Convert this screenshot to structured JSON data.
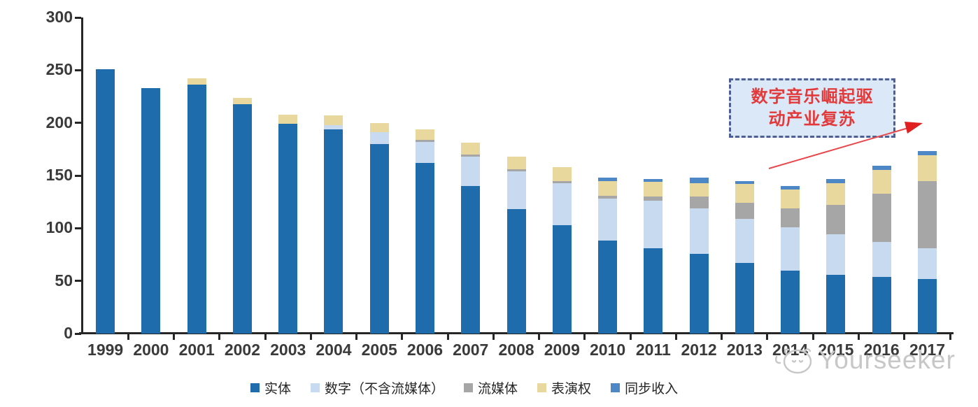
{
  "chart_data": {
    "type": "bar",
    "stacked": true,
    "title": "",
    "xlabel": "",
    "ylabel": "",
    "ylim": [
      0,
      300
    ],
    "yticks": [
      0,
      50,
      100,
      150,
      200,
      250,
      300
    ],
    "grid": false,
    "legend_position": "bottom",
    "categories": [
      "1999",
      "2000",
      "2001",
      "2002",
      "2003",
      "2004",
      "2005",
      "2006",
      "2007",
      "2008",
      "2009",
      "2010",
      "2011",
      "2012",
      "2013",
      "2014",
      "2015",
      "2016",
      "2017"
    ],
    "series": [
      {
        "name": "实体",
        "color": "#1F6CAC",
        "values": [
          251,
          233,
          236,
          218,
          199,
          194,
          180,
          162,
          140,
          118,
          103,
          88,
          81,
          76,
          67,
          60,
          56,
          54,
          52
        ]
      },
      {
        "name": "数字（不含流媒体）",
        "color": "#C7DAEF",
        "values": [
          0,
          0,
          0,
          0,
          0,
          4,
          11,
          20,
          28,
          36,
          40,
          40,
          45,
          43,
          42,
          41,
          38,
          33,
          29
        ]
      },
      {
        "name": "流媒体",
        "color": "#A6A6A6",
        "values": [
          0,
          0,
          0,
          0,
          0,
          0,
          0,
          2,
          2,
          2,
          2,
          3,
          4,
          11,
          15,
          18,
          28,
          46,
          64
        ]
      },
      {
        "name": "表演权",
        "color": "#E8D89E",
        "values": [
          0,
          0,
          6,
          6,
          9,
          9,
          9,
          10,
          11,
          12,
          13,
          14,
          14,
          13,
          18,
          18,
          21,
          22,
          24
        ]
      },
      {
        "name": "同步收入",
        "color": "#4E87C5",
        "values": [
          0,
          0,
          0,
          0,
          0,
          0,
          0,
          0,
          0,
          0,
          0,
          3,
          3,
          5,
          3,
          3,
          4,
          4,
          4
        ]
      }
    ]
  },
  "annotation": {
    "text": "数字音乐崛起驱动产业复苏",
    "line1": "数字音乐崛起驱",
    "line2": "动产业复苏",
    "border_color": "#4e5f94",
    "fill_color": "#dbe8f7",
    "text_color": "#e23a3a",
    "arrow_color": "#e8474b"
  },
  "watermark": {
    "text": "Yourseeker",
    "icon": "yourseeker-face-logo",
    "color": "#c7c7c7"
  },
  "axis": {
    "color": "#262626",
    "label_color": "#3a3a3a"
  }
}
